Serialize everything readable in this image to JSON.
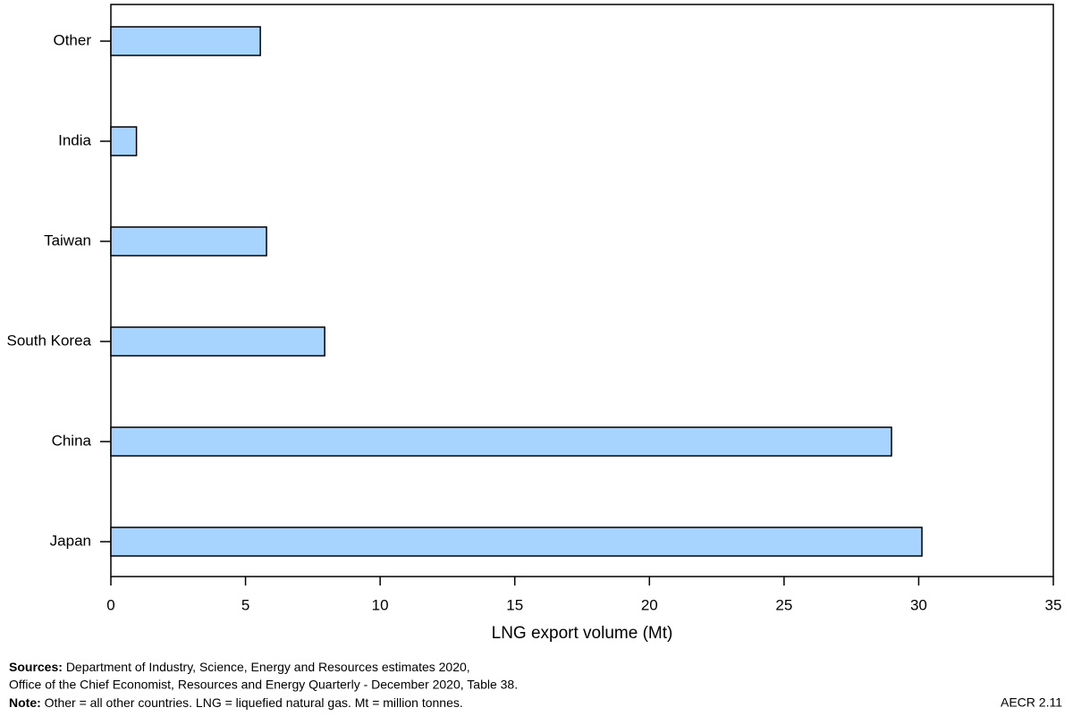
{
  "chart_data": {
    "type": "bar",
    "orientation": "horizontal",
    "categories": [
      "Other",
      "India",
      "Taiwan",
      "South Korea",
      "China",
      "Japan"
    ],
    "values": [
      5.55,
      0.95,
      5.78,
      7.94,
      28.99,
      30.12
    ],
    "color": "#a6d3ff",
    "xlim": [
      0,
      35
    ],
    "xticks": [
      0,
      5,
      10,
      15,
      20,
      25,
      30,
      35
    ],
    "x_label": "LNG export volume (Mt)"
  },
  "footer": {
    "sources_label": "Sources:",
    "sources": [
      "Department of Industry, Science, Energy and Resources estimates 2020,",
      "Office of the Chief Economist, Resources and Energy Quarterly - December 2020, Table 38."
    ],
    "note_label": "Note:",
    "note": "Other = all other countries. LNG = liquefied natural gas. Mt = million tonnes.",
    "code": "AECR 2.11"
  }
}
